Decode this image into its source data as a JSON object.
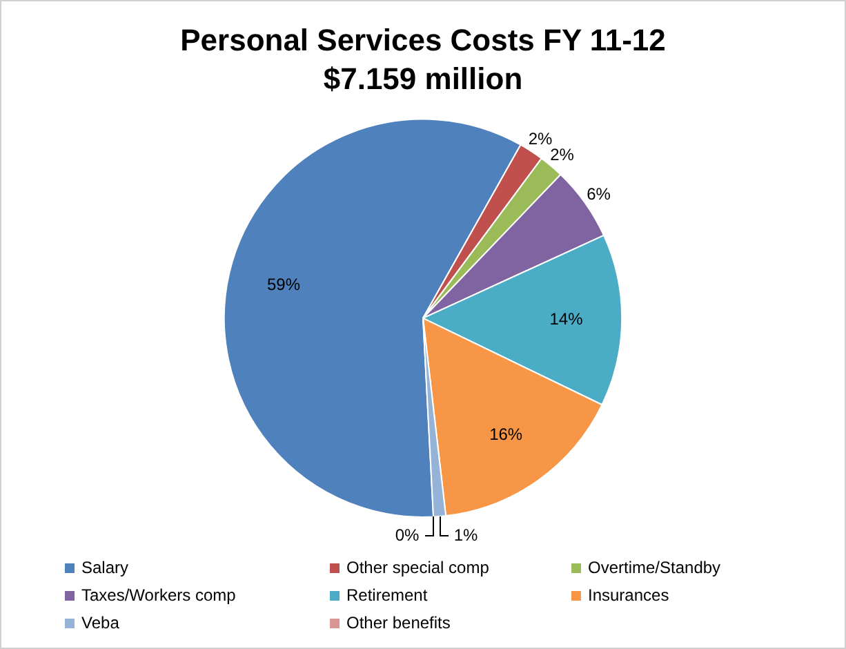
{
  "chart_data": {
    "type": "pie",
    "title": "Personal Services Costs FY 11-12",
    "subtitle": "$7.159 million",
    "categories": [
      "Salary",
      "Other special comp",
      "Overtime/Standby",
      "Taxes/Workers comp",
      "Retirement",
      "Insurances",
      "Veba",
      "Other benefits"
    ],
    "values": [
      59,
      2,
      2,
      6,
      14,
      16,
      1,
      0
    ],
    "colors": [
      "#4f81bd",
      "#c0504d",
      "#9bbb59",
      "#8064a2",
      "#4bacc6",
      "#f79646",
      "#95b3d7",
      "#d99694"
    ],
    "value_labels": [
      "59%",
      "2%",
      "2%",
      "6%",
      "14%",
      "16%",
      "1%",
      "0%"
    ],
    "legend": "bottom"
  }
}
